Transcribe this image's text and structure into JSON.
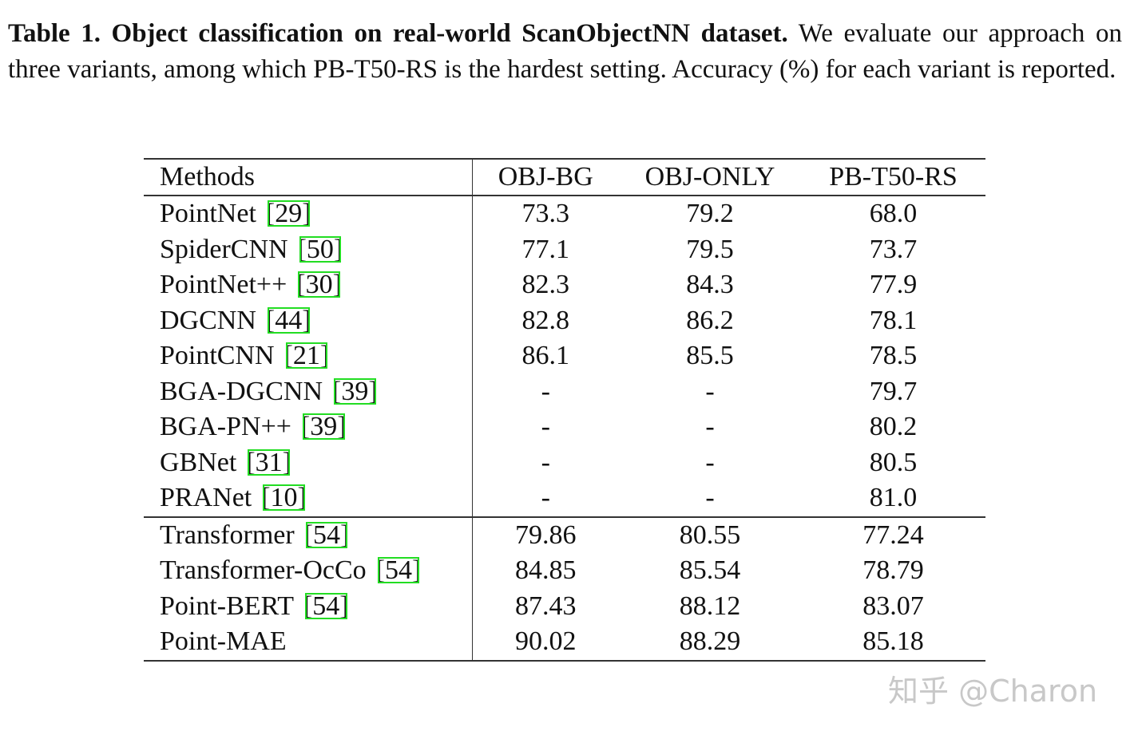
{
  "caption": {
    "label": "Table 1. Object classification on real-world ScanObjectNN dataset.",
    "text": "We evaluate our approach on three variants, among which PB-T50-RS is the hardest setting. Accuracy (%) for each variant is reported."
  },
  "table": {
    "header": [
      "Methods",
      "OBJ-BG",
      "OBJ-ONLY",
      "PB-T50-RS"
    ],
    "groups": [
      {
        "rows": [
          {
            "method": "PointNet",
            "ref": "[29]",
            "values": [
              "73.3",
              "79.2",
              "68.0"
            ]
          },
          {
            "method": "SpiderCNN",
            "ref": "[50]",
            "values": [
              "77.1",
              "79.5",
              "73.7"
            ]
          },
          {
            "method": "PointNet++",
            "ref": "[30]",
            "values": [
              "82.3",
              "84.3",
              "77.9"
            ]
          },
          {
            "method": "DGCNN",
            "ref": "[44]",
            "values": [
              "82.8",
              "86.2",
              "78.1"
            ]
          },
          {
            "method": "PointCNN",
            "ref": "[21]",
            "values": [
              "86.1",
              "85.5",
              "78.5"
            ]
          },
          {
            "method": "BGA-DGCNN",
            "ref": "[39]",
            "values": [
              "-",
              "-",
              "79.7"
            ]
          },
          {
            "method": "BGA-PN++",
            "ref": "[39]",
            "values": [
              "-",
              "-",
              "80.2"
            ]
          },
          {
            "method": "GBNet",
            "ref": "[31]",
            "values": [
              "-",
              "-",
              "80.5"
            ]
          },
          {
            "method": "PRANet",
            "ref": "[10]",
            "values": [
              "-",
              "-",
              "81.0"
            ]
          }
        ]
      },
      {
        "rows": [
          {
            "method": "Transformer",
            "ref": "[54]",
            "values": [
              "79.86",
              "80.55",
              "77.24"
            ]
          },
          {
            "method": "Transformer-OcCo",
            "ref": "[54]",
            "values": [
              "84.85",
              "85.54",
              "78.79"
            ]
          },
          {
            "method": "Point-BERT",
            "ref": "[54]",
            "values": [
              "87.43",
              "88.12",
              "83.07"
            ]
          },
          {
            "method": "Point-MAE",
            "values": [
              "90.02",
              "88.29",
              "85.18"
            ],
            "bold": true
          }
        ]
      }
    ]
  },
  "watermark": "知乎 @Charon"
}
